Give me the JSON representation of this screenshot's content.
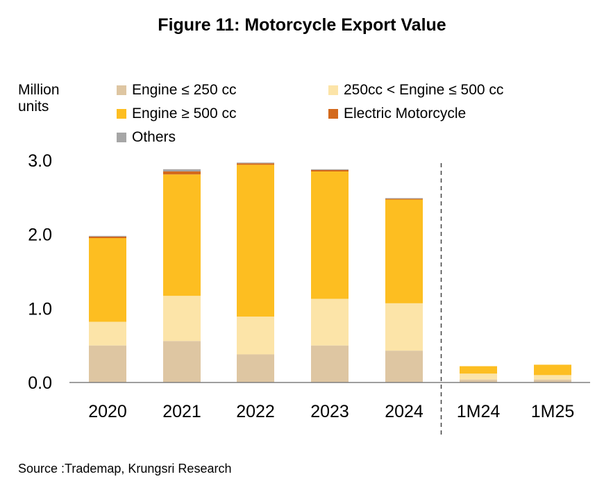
{
  "title": "Figure 11:  Motorcycle Export Value",
  "source": "Source :Trademap, Krungsri Research",
  "chart_data": {
    "type": "bar",
    "stacked": true,
    "ylabel": "Million\nunits",
    "ylabel_lines": [
      "Million",
      "units"
    ],
    "ylim": [
      0,
      3.0
    ],
    "yticks": [
      "0.0",
      "1.0",
      "2.0",
      "3.0"
    ],
    "ytick_values": [
      0,
      1,
      2,
      3
    ],
    "categories": [
      "2020",
      "2021",
      "2022",
      "2023",
      "2024",
      "1M24",
      "1M25"
    ],
    "divider_after_category": "2024",
    "legend_position": "top",
    "series": [
      {
        "name": "Engine ≤ 250 cc",
        "color": "#DEC6A2",
        "values": [
          0.5,
          0.56,
          0.38,
          0.5,
          0.43,
          0.04,
          0.04
        ]
      },
      {
        "name": "250cc < Engine ≤ 500 cc",
        "color": "#FCE4A8",
        "values": [
          0.32,
          0.61,
          0.51,
          0.63,
          0.64,
          0.08,
          0.06
        ]
      },
      {
        "name": "Engine ≥ 500 cc",
        "color": "#FDBE21",
        "values": [
          1.13,
          1.64,
          2.05,
          1.72,
          1.4,
          0.1,
          0.14
        ]
      },
      {
        "name": "Electric Motorcycle",
        "color": "#D3691C",
        "values": [
          0.02,
          0.04,
          0.02,
          0.02,
          0.01,
          0.0,
          0.0
        ]
      },
      {
        "name": "Others",
        "color": "#A6A6A6",
        "values": [
          0.01,
          0.03,
          0.01,
          0.01,
          0.01,
          0.0,
          0.0
        ]
      }
    ]
  }
}
